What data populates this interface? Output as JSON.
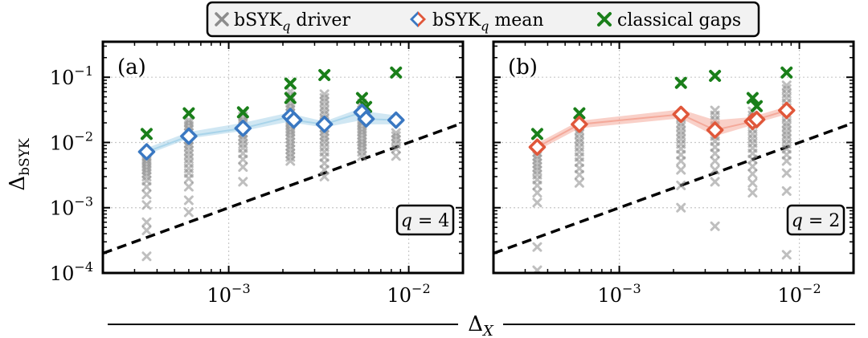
{
  "legend": {
    "driver_label": "bSYK",
    "driver_sub": "q",
    "driver_suffix": " driver",
    "mean_label": "bSYK",
    "mean_sub": "q",
    "mean_suffix": " mean",
    "classical_label": "classical gaps"
  },
  "x_axis_title_main": "Δ",
  "x_axis_title_sub": "X",
  "y_axis_title_main": "Δ",
  "y_axis_title_sub": "bSYK",
  "colors": {
    "driver": "#8c8c8c",
    "classical": "#1a7f1a",
    "mean_a": "#3a78c2",
    "band_a": "#a9d4ea",
    "mean_b": "#e0573a",
    "band_b": "#f4a99a",
    "reference_line": "#000000"
  },
  "chart_data": [
    {
      "type": "scatter",
      "panel_label": "(a)",
      "q_label_var": "q",
      "q_label_rest": " = 4",
      "log_x": true,
      "log_y": true,
      "xlim": [
        0.0002,
        0.02
      ],
      "ylim": [
        0.0001,
        0.35
      ],
      "x_ticks": [
        {
          "value": 0.001,
          "mantissa": "10",
          "exp": "−3"
        },
        {
          "value": 0.01,
          "mantissa": "10",
          "exp": "−2"
        }
      ],
      "y_ticks": [
        {
          "value": 0.0001,
          "mantissa": "10",
          "exp": "−4"
        },
        {
          "value": 0.001,
          "mantissa": "10",
          "exp": "−3"
        },
        {
          "value": 0.01,
          "mantissa": "10",
          "exp": "−2"
        },
        {
          "value": 0.1,
          "mantissa": "10",
          "exp": "−1"
        }
      ],
      "grid": true,
      "reference_line": {
        "style": "dashed",
        "points": [
          [
            0.0002,
            0.0002
          ],
          [
            0.02,
            0.02
          ]
        ]
      },
      "driver_columns": [
        {
          "x": 0.00035,
          "y": [
            0.00018,
            0.00045,
            0.0006,
            0.0011,
            0.0016,
            0.0021,
            0.0026,
            0.003,
            0.0034,
            0.0038,
            0.0042,
            0.0047,
            0.0052,
            0.0057,
            0.0063,
            0.007
          ]
        },
        {
          "x": 0.0006,
          "y": [
            0.00085,
            0.0013,
            0.0021,
            0.0028,
            0.0034,
            0.004,
            0.0048,
            0.0056,
            0.0065,
            0.0075,
            0.0087,
            0.0098,
            0.011,
            0.0125,
            0.014,
            0.016,
            0.018,
            0.02,
            0.022
          ]
        },
        {
          "x": 0.0012,
          "y": [
            0.0025,
            0.0042,
            0.0055,
            0.0068,
            0.0082,
            0.0095,
            0.011,
            0.0125,
            0.014,
            0.016,
            0.018,
            0.02,
            0.022,
            0.025,
            0.028
          ]
        },
        {
          "x": 0.0022,
          "y": [
            0.0052,
            0.006,
            0.0068,
            0.0078,
            0.0088,
            0.01,
            0.0115,
            0.013,
            0.0145,
            0.016,
            0.018,
            0.02,
            0.022,
            0.025,
            0.028,
            0.032,
            0.036,
            0.04,
            0.046,
            0.052,
            0.06
          ]
        },
        {
          "x": 0.0034,
          "y": [
            0.003,
            0.0038,
            0.0048,
            0.006,
            0.0072,
            0.0085,
            0.01,
            0.0115,
            0.013,
            0.015,
            0.017,
            0.02,
            0.023,
            0.027,
            0.031,
            0.036,
            0.042,
            0.048,
            0.055
          ]
        },
        {
          "x": 0.0055,
          "y": [
            0.0062,
            0.0072,
            0.0082,
            0.0092,
            0.0102,
            0.0115,
            0.013,
            0.0145,
            0.016,
            0.018,
            0.02,
            0.022,
            0.025,
            0.028,
            0.031,
            0.035,
            0.04
          ]
        },
        {
          "x": 0.0085,
          "y": [
            0.0062,
            0.008,
            0.0095,
            0.011,
            0.0125,
            0.014
          ]
        }
      ],
      "mean": {
        "x": [
          0.00035,
          0.0006,
          0.0012,
          0.0022,
          0.0023,
          0.0034,
          0.0055,
          0.0058,
          0.0085
        ],
        "y": [
          0.0072,
          0.0125,
          0.0165,
          0.025,
          0.022,
          0.019,
          0.029,
          0.023,
          0.022
        ],
        "band_lower": [
          0.0065,
          0.0115,
          0.015,
          0.021,
          0.02,
          0.017,
          0.022,
          0.019,
          0.019
        ],
        "band_upper": [
          0.0082,
          0.0145,
          0.02,
          0.029,
          0.027,
          0.021,
          0.034,
          0.03,
          0.026
        ]
      },
      "classical_gaps": {
        "x": [
          0.00035,
          0.0006,
          0.0012,
          0.0022,
          0.0022,
          0.0034,
          0.0055,
          0.0058,
          0.0085
        ],
        "y": [
          0.0135,
          0.028,
          0.029,
          0.048,
          0.08,
          0.108,
          0.048,
          0.035,
          0.118
        ]
      }
    },
    {
      "type": "scatter",
      "panel_label": "(b)",
      "q_label_var": "q",
      "q_label_rest": " = 2",
      "log_x": true,
      "log_y": true,
      "xlim": [
        0.0002,
        0.02
      ],
      "ylim": [
        0.0001,
        0.35
      ],
      "x_ticks": [
        {
          "value": 0.001,
          "mantissa": "10",
          "exp": "−3"
        },
        {
          "value": 0.01,
          "mantissa": "10",
          "exp": "−2"
        }
      ],
      "y_ticks": [],
      "grid": true,
      "reference_line": {
        "style": "dashed",
        "points": [
          [
            0.0002,
            0.0002
          ],
          [
            0.02,
            0.02
          ]
        ]
      },
      "driver_columns": [
        {
          "x": 0.00035,
          "y": [
            0.00011,
            0.00025,
            0.0012,
            0.0017,
            0.0022,
            0.0027,
            0.0032,
            0.0037,
            0.0042,
            0.0048,
            0.0055,
            0.0062,
            0.0071
          ]
        },
        {
          "x": 0.0006,
          "y": [
            0.0024,
            0.0032,
            0.004,
            0.005,
            0.006,
            0.0072,
            0.0085,
            0.01,
            0.0115,
            0.0135,
            0.0155,
            0.018
          ]
        },
        {
          "x": 0.0022,
          "y": [
            0.001,
            0.0022,
            0.0038,
            0.0052,
            0.0065,
            0.008,
            0.0095,
            0.0112,
            0.013,
            0.015,
            0.0175,
            0.02,
            0.024
          ]
        },
        {
          "x": 0.0034,
          "y": [
            0.00052,
            0.0025,
            0.0038,
            0.0052,
            0.0068,
            0.0085,
            0.0105,
            0.0125,
            0.015,
            0.018,
            0.022,
            0.026,
            0.031
          ]
        },
        {
          "x": 0.0055,
          "y": [
            0.0017,
            0.0024,
            0.0033,
            0.0043,
            0.0055,
            0.0068,
            0.0082,
            0.0098,
            0.0115,
            0.0135,
            0.016,
            0.019,
            0.022,
            0.026,
            0.03
          ]
        },
        {
          "x": 0.0085,
          "y": [
            0.00019,
            0.0018,
            0.0034,
            0.0052,
            0.0065,
            0.008,
            0.0095,
            0.0112,
            0.013,
            0.015,
            0.0175,
            0.02,
            0.024,
            0.028,
            0.034,
            0.04,
            0.048,
            0.056,
            0.066,
            0.075
          ]
        }
      ],
      "mean": {
        "x": [
          0.00035,
          0.0006,
          0.0022,
          0.0034,
          0.0055,
          0.0058,
          0.0085
        ],
        "y": [
          0.0085,
          0.019,
          0.027,
          0.0155,
          0.021,
          0.0225,
          0.031
        ],
        "band_lower": [
          0.0075,
          0.0165,
          0.0235,
          0.0125,
          0.0185,
          0.02,
          0.027
        ],
        "band_upper": [
          0.0097,
          0.0215,
          0.032,
          0.022,
          0.0245,
          0.026,
          0.0355
        ]
      },
      "classical_gaps": {
        "x": [
          0.00035,
          0.0006,
          0.0022,
          0.0034,
          0.0055,
          0.0058,
          0.0085
        ],
        "y": [
          0.0135,
          0.028,
          0.082,
          0.105,
          0.048,
          0.036,
          0.118
        ]
      }
    }
  ]
}
